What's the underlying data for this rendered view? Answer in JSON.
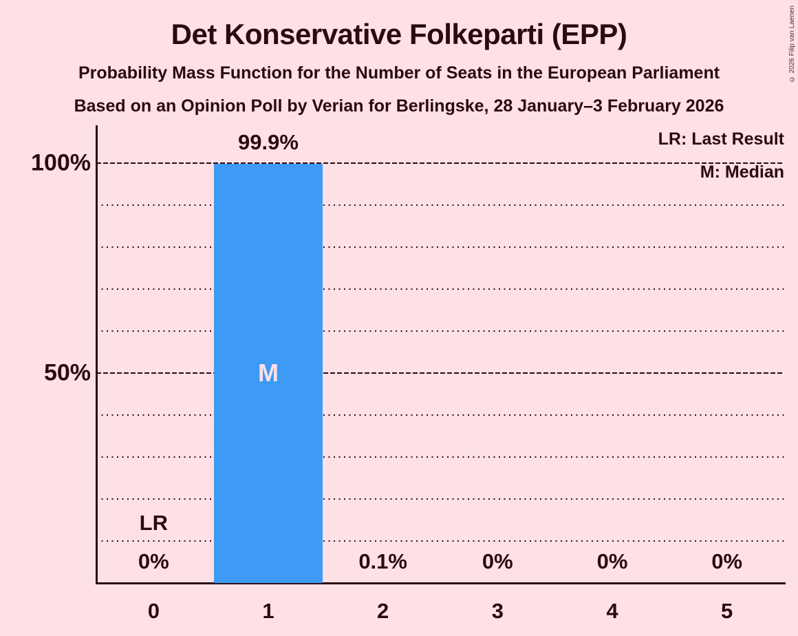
{
  "title": "Det Konservative Folkeparti (EPP)",
  "subtitle1": "Probability Mass Function for the Number of Seats in the European Parliament",
  "subtitle2": "Based on an Opinion Poll by Verian for Berlingske, 28 January–3 February 2026",
  "copyright": "© 2026 Filip van Laenen",
  "legend": {
    "lr": "LR: Last Result",
    "m": "M: Median"
  },
  "colors": {
    "background": "#fde1e6",
    "text": "#2b0a12",
    "bar": "#3d9af5",
    "bar_label": "#fde1e6"
  },
  "chart_data": {
    "type": "bar",
    "title": "Det Konservative Folkeparti (EPP)",
    "xlabel": "",
    "ylabel": "",
    "categories": [
      "0",
      "1",
      "2",
      "3",
      "4",
      "5"
    ],
    "values": [
      0,
      99.9,
      0.1,
      0,
      0,
      0
    ],
    "value_labels": [
      "0%",
      "99.9%",
      "0.1%",
      "0%",
      "0%",
      "0%"
    ],
    "ylim": [
      0,
      100
    ],
    "y_ticks": [
      {
        "pct": 100,
        "label": "100%"
      },
      {
        "pct": 50,
        "label": "50%"
      }
    ],
    "gridlines_minor_pct": [
      10,
      20,
      30,
      40,
      60,
      70,
      80,
      90
    ],
    "gridlines_major_pct": [
      50,
      100
    ],
    "grid": true,
    "legend_position": "top-right",
    "median_category": "1",
    "median_marker": "M",
    "last_result_category": "0",
    "last_result_marker": "LR"
  }
}
